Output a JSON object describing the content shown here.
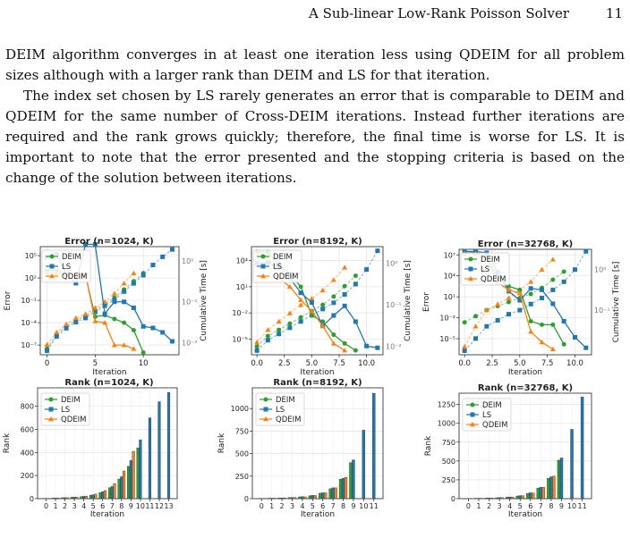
{
  "header": {
    "running_title": "A Sub-linear Low-Rank Poisson Solver",
    "page_number": "11"
  },
  "paragraphs": [
    "DEIM algorithm converges in at least one iteration less using QDEIM for all problem sizes although with a larger rank than DEIM and LS for that iteration.",
    "The index set chosen by LS rarely generates an error that is comparable to DEIM and QDEIM for the same number of Cross-DEIM iterations. Instead further iterations are required and the rank grows quickly; therefore, the final time is worse for LS. It is important to note that the error presented and the stopping criteria is based on the change of the solution between iterations."
  ],
  "colors": {
    "DEIM": "#2ca02c",
    "LS": "#1f77b4",
    "QDEIM": "#ff7f0e"
  },
  "chart_data": [
    {
      "type": "line",
      "title": "Error (n=1024, K)",
      "xlabel": "Iteration",
      "ylabel": "Error",
      "y2label": "Cumulative Time [s]",
      "xlim": [
        -0.7,
        13.7
      ],
      "xticks": [
        0,
        5,
        10
      ],
      "ylog": true,
      "ylim_exp": [
        -8.3,
        6.2
      ],
      "yticks": [
        {
          "e": 5,
          "label": "10⁵"
        },
        {
          "e": 2,
          "label": "10²"
        },
        {
          "e": -1,
          "label": "10⁻¹"
        },
        {
          "e": -4,
          "label": "10⁻⁴"
        },
        {
          "e": -7,
          "label": "10⁻⁷"
        }
      ],
      "y2lim_exp": [
        -2.3,
        0.35
      ],
      "y2ticks": [
        {
          "e": 0,
          "label": "10⁰"
        },
        {
          "e": -1,
          "label": "10⁻¹"
        },
        {
          "e": -2,
          "label": "10⁻²"
        }
      ],
      "legend": [
        "DEIM",
        "LS",
        "QDEIM"
      ],
      "legend_loc": "upper-left",
      "grid": true,
      "series": [
        {
          "name": "DEIM",
          "x": [
            0,
            1,
            2,
            3,
            4,
            5,
            6,
            7,
            8,
            9,
            10
          ],
          "y": [
            3,
            3,
            2.5,
            2.2,
            2.3,
            -3.2,
            -3.0,
            -3.5,
            -4.0,
            -5.0,
            -8.0
          ]
        },
        {
          "name": "LS",
          "x": [
            0,
            1,
            2,
            3,
            4,
            5,
            6,
            7,
            8,
            9,
            10,
            11,
            12,
            13
          ],
          "y": [
            4.8,
            5.2,
            2.5,
            1.3,
            6.5,
            6.5,
            -2.8,
            -1.2,
            -1.2,
            -2.0,
            -4.5,
            -4.7,
            -5.3,
            -6.5
          ]
        },
        {
          "name": "QDEIM",
          "x": [
            0,
            1,
            2,
            3,
            4,
            5,
            6,
            7,
            8,
            9
          ],
          "y": [
            2.7,
            2.7,
            2.4,
            2.2,
            2.5,
            -3.8,
            -4.0,
            -7.0,
            -7.0,
            -7.5
          ]
        }
      ],
      "time_series": [
        {
          "name": "DEIM",
          "x": [
            0,
            1,
            2,
            3,
            4,
            5,
            6,
            7,
            8,
            9,
            10
          ],
          "y": [
            -2.15,
            -1.8,
            -1.6,
            -1.45,
            -1.35,
            -1.2,
            -1.05,
            -0.9,
            -0.7,
            -0.5,
            -0.3
          ]
        },
        {
          "name": "LS",
          "x": [
            0,
            1,
            2,
            3,
            4,
            5,
            6,
            7,
            8,
            9,
            10,
            11,
            12,
            13
          ],
          "y": [
            -2.2,
            -1.85,
            -1.65,
            -1.5,
            -1.4,
            -1.25,
            -1.1,
            -0.95,
            -0.75,
            -0.55,
            -0.35,
            -0.1,
            0.1,
            0.28
          ]
        },
        {
          "name": "QDEIM",
          "x": [
            0,
            1,
            2,
            3,
            4,
            5,
            6,
            7,
            8,
            9
          ],
          "y": [
            -2.05,
            -1.75,
            -1.55,
            -1.4,
            -1.3,
            -1.15,
            -1.0,
            -0.8,
            -0.55,
            -0.3
          ]
        }
      ]
    },
    {
      "type": "line",
      "title": "Error (n=8192, K)",
      "xlabel": "Iteration",
      "ylabel": "",
      "y2label": "Cumulative Time [s]",
      "xlim": [
        -0.5,
        11.5
      ],
      "xticks": [
        0,
        2.5,
        5.0,
        7.5,
        10.0
      ],
      "xticklabels": [
        "0.0",
        "2.5",
        "5.0",
        "7.5",
        "10.0"
      ],
      "ylog": true,
      "ylim_exp": [
        -6.8,
        5.6
      ],
      "yticks": [
        {
          "e": 4,
          "label": "10⁴"
        },
        {
          "e": 1,
          "label": "10¹"
        },
        {
          "e": -2,
          "label": "10⁻²"
        },
        {
          "e": -5,
          "label": "10⁻⁵"
        }
      ],
      "y2lim_exp": [
        -2.2,
        0.4
      ],
      "y2ticks": [
        {
          "e": 0,
          "label": "10⁰"
        },
        {
          "e": -1,
          "label": "10⁻¹"
        },
        {
          "e": -2,
          "label": "10⁻²"
        }
      ],
      "legend": [
        "DEIM",
        "LS",
        "QDEIM"
      ],
      "legend_loc": "upper-left",
      "grid": true,
      "series": [
        {
          "name": "DEIM",
          "x": [
            0,
            1,
            2,
            3,
            4,
            5,
            6,
            7,
            8,
            9
          ],
          "y": [
            5.0,
            5.0,
            3.5,
            2.5,
            1.0,
            -2.3,
            -3.0,
            -4.5,
            -5.5,
            -6.3
          ]
        },
        {
          "name": "LS",
          "x": [
            0,
            1,
            2,
            3,
            4,
            5,
            6,
            7,
            8,
            9,
            10,
            11
          ],
          "y": [
            3.7,
            3.8,
            3.3,
            2.0,
            0.3,
            -0.8,
            -3.5,
            -2.3,
            -1.2,
            -3.0,
            -5.8,
            -6.0
          ]
        },
        {
          "name": "QDEIM",
          "x": [
            0,
            1,
            2,
            3,
            4,
            5,
            6,
            7,
            8
          ],
          "y": [
            5.0,
            4.5,
            2.0,
            1.0,
            -0.5,
            -1.8,
            -3.5,
            -5.5,
            -6.3
          ]
        }
      ],
      "time_series": [
        {
          "name": "DEIM",
          "x": [
            0,
            1,
            2,
            3,
            4,
            5,
            6,
            7,
            8,
            9
          ],
          "y": [
            -2.0,
            -1.75,
            -1.6,
            -1.45,
            -1.3,
            -1.15,
            -1.0,
            -0.8,
            -0.55,
            -0.3
          ]
        },
        {
          "name": "LS",
          "x": [
            0,
            1,
            2,
            3,
            4,
            5,
            6,
            7,
            8,
            9,
            10,
            11
          ],
          "y": [
            -2.1,
            -1.85,
            -1.7,
            -1.55,
            -1.4,
            -1.25,
            -1.1,
            -0.95,
            -0.75,
            -0.5,
            -0.15,
            0.3
          ]
        },
        {
          "name": "QDEIM",
          "x": [
            0,
            1,
            2,
            3,
            4,
            5,
            6,
            7,
            8
          ],
          "y": [
            -1.9,
            -1.6,
            -1.4,
            -1.2,
            -1.0,
            -0.85,
            -0.65,
            -0.4,
            -0.1
          ]
        }
      ]
    },
    {
      "type": "line",
      "title": "Error (n=32768, K)",
      "xlabel": "Iteration",
      "ylabel": "Error",
      "y2label": "Cumulative Time [s]",
      "xlim": [
        -0.5,
        11.5
      ],
      "xticks": [
        0,
        2.5,
        5.0,
        7.5,
        10.0
      ],
      "xticklabels": [
        "0.0",
        "2.5",
        "5.0",
        "7.5",
        "10.0"
      ],
      "ylog": true,
      "ylim_exp": [
        -7.3,
        7.8
      ],
      "yticks": [
        {
          "e": 7,
          "label": "10⁷"
        },
        {
          "e": 4,
          "label": "10⁴"
        },
        {
          "e": 1,
          "label": "10¹"
        },
        {
          "e": -2,
          "label": "10⁻²"
        },
        {
          "e": -5,
          "label": "10⁻⁵"
        }
      ],
      "y2lim_exp": [
        -2.1,
        0.5
      ],
      "y2ticks": [
        {
          "e": 0,
          "label": "10⁰"
        },
        {
          "e": -1,
          "label": "10⁻¹"
        }
      ],
      "legend": [
        "DEIM",
        "LS",
        "QDEIM"
      ],
      "legend_loc": "upper-left",
      "grid": true,
      "series": [
        {
          "name": "DEIM",
          "x": [
            0,
            1,
            2,
            3,
            4,
            5,
            6,
            7,
            8,
            9
          ],
          "y": [
            7.5,
            7.3,
            6.8,
            3.5,
            2.5,
            2.0,
            -2.5,
            -3.0,
            -3.0,
            -5.8
          ]
        },
        {
          "name": "LS",
          "x": [
            0,
            1,
            2,
            3,
            4,
            5,
            6,
            7,
            8,
            9,
            10,
            11
          ],
          "y": [
            7.5,
            7.5,
            7.3,
            4.5,
            1.8,
            0.5,
            2.2,
            2.0,
            0.0,
            -2.5,
            -4.8,
            -6.3
          ]
        },
        {
          "name": "QDEIM",
          "x": [
            0,
            1,
            2,
            3,
            4,
            5,
            6,
            7,
            8
          ],
          "y": [
            7.2,
            7.2,
            6.5,
            3.0,
            2.0,
            1.5,
            -4.0,
            -5.5,
            -6.5
          ]
        }
      ],
      "time_series": [
        {
          "name": "DEIM",
          "x": [
            0,
            1,
            2,
            3,
            4,
            5,
            6,
            7,
            8,
            9
          ],
          "y": [
            -1.3,
            -1.15,
            -1.0,
            -0.9,
            -0.8,
            -0.7,
            -0.6,
            -0.45,
            -0.25,
            -0.05
          ]
        },
        {
          "name": "LS",
          "x": [
            0,
            1,
            2,
            3,
            4,
            5,
            6,
            7,
            8,
            9,
            10,
            11
          ],
          "y": [
            -2.0,
            -1.7,
            -1.4,
            -1.25,
            -1.1,
            -1.0,
            -0.85,
            -0.7,
            -0.5,
            -0.3,
            0.0,
            0.45
          ]
        },
        {
          "name": "QDEIM",
          "x": [
            0,
            1,
            2,
            3,
            4,
            5,
            6,
            7,
            8
          ],
          "y": [
            -1.9,
            -1.4,
            -1.0,
            -0.85,
            -0.7,
            -0.5,
            -0.3,
            0.0,
            0.25
          ]
        }
      ]
    },
    {
      "type": "bar",
      "title": "Rank (n=1024, K)",
      "xlabel": "Iteration",
      "ylabel": "Rank",
      "categories": [
        "0",
        "1",
        "2",
        "3",
        "4",
        "5",
        "6",
        "7",
        "8",
        "9",
        "10",
        "11",
        "12",
        "13"
      ],
      "ylim": [
        0,
        960
      ],
      "yticks": [
        0,
        200,
        400,
        600,
        800
      ],
      "legend": [
        "DEIM",
        "LS",
        "QDEIM"
      ],
      "legend_loc": "upper-left",
      "grid": true,
      "series": [
        {
          "name": "DEIM",
          "values": [
            2,
            5,
            8,
            12,
            18,
            30,
            52,
            95,
            170,
            280,
            440,
            null,
            null,
            null
          ]
        },
        {
          "name": "LS",
          "values": [
            2,
            5,
            9,
            14,
            20,
            34,
            60,
            105,
            190,
            330,
            510,
            700,
            840,
            920
          ]
        },
        {
          "name": "QDEIM",
          "values": [
            2,
            5,
            8,
            13,
            22,
            40,
            70,
            130,
            240,
            410,
            null,
            null,
            null,
            null
          ]
        }
      ]
    },
    {
      "type": "bar",
      "title": "Rank (n=8192, K)",
      "xlabel": "Iteration",
      "ylabel": "Rank",
      "categories": [
        "0",
        "1",
        "2",
        "3",
        "4",
        "5",
        "6",
        "7",
        "8",
        "9",
        "10",
        "11"
      ],
      "ylim": [
        0,
        1230
      ],
      "yticks": [
        0,
        250,
        500,
        750,
        1000
      ],
      "legend": [
        "DEIM",
        "LS",
        "QDEIM"
      ],
      "legend_loc": "upper-left",
      "grid": true,
      "series": [
        {
          "name": "DEIM",
          "values": [
            2,
            5,
            8,
            12,
            20,
            32,
            60,
            110,
            215,
            400,
            null,
            null
          ]
        },
        {
          "name": "LS",
          "values": [
            2,
            5,
            8,
            13,
            22,
            36,
            65,
            120,
            225,
            430,
            760,
            1170
          ]
        },
        {
          "name": "QDEIM",
          "values": [
            2,
            5,
            8,
            13,
            20,
            35,
            65,
            120,
            235,
            null,
            null,
            null
          ]
        }
      ]
    },
    {
      "type": "bar",
      "title": "Rank (n=32768, K)",
      "xlabel": "Iteration",
      "ylabel": "Rank",
      "categories": [
        "0",
        "1",
        "2",
        "3",
        "4",
        "5",
        "6",
        "7",
        "8",
        "9",
        "10",
        "11"
      ],
      "ylim": [
        0,
        1400
      ],
      "yticks": [
        0,
        250,
        500,
        750,
        1000,
        1250
      ],
      "legend": [
        "DEIM",
        "LS",
        "QDEIM"
      ],
      "legend_loc": "upper-left",
      "grid": true,
      "series": [
        {
          "name": "DEIM",
          "values": [
            2,
            5,
            8,
            12,
            20,
            35,
            70,
            140,
            270,
            510,
            null,
            null
          ]
        },
        {
          "name": "LS",
          "values": [
            2,
            5,
            9,
            14,
            22,
            40,
            78,
            150,
            290,
            540,
            920,
            1350
          ]
        },
        {
          "name": "QDEIM",
          "values": [
            2,
            5,
            8,
            13,
            22,
            40,
            75,
            150,
            300,
            null,
            null,
            null
          ]
        }
      ]
    }
  ]
}
